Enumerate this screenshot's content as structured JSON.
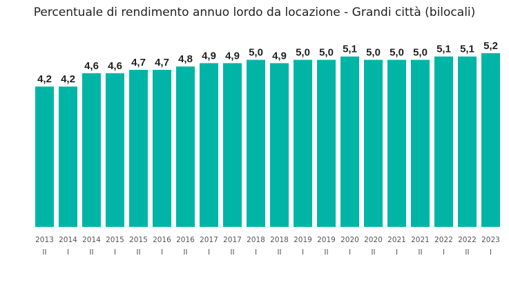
{
  "chart_data": {
    "type": "bar",
    "title": "Percentuale di rendimento annuo lordo da locazione - Grandi città (bilocali)",
    "categories": [
      [
        "2013",
        "II"
      ],
      [
        "2014",
        "I"
      ],
      [
        "2014",
        "II"
      ],
      [
        "2015",
        "I"
      ],
      [
        "2015",
        "II"
      ],
      [
        "2016",
        "I"
      ],
      [
        "2016",
        "II"
      ],
      [
        "2017",
        "I"
      ],
      [
        "2017",
        "II"
      ],
      [
        "2018",
        "I"
      ],
      [
        "2018",
        "II"
      ],
      [
        "2019",
        "I"
      ],
      [
        "2019",
        "II"
      ],
      [
        "2020",
        "I"
      ],
      [
        "2020",
        "II"
      ],
      [
        "2021",
        "I"
      ],
      [
        "2021",
        "II"
      ],
      [
        "2022",
        "I"
      ],
      [
        "2022",
        "II"
      ],
      [
        "2023",
        "I"
      ]
    ],
    "values": [
      4.2,
      4.2,
      4.6,
      4.6,
      4.7,
      4.7,
      4.8,
      4.9,
      4.9,
      5.0,
      4.9,
      5.0,
      5.0,
      5.1,
      5.0,
      5.0,
      5.0,
      5.1,
      5.1,
      5.2
    ],
    "data_labels": [
      "4,2",
      "4,2",
      "4,6",
      "4,6",
      "4,7",
      "4,7",
      "4,8",
      "4,9",
      "4,9",
      "5,0",
      "4,9",
      "5,0",
      "5,0",
      "5,1",
      "5,0",
      "5,0",
      "5,0",
      "5,1",
      "5,1",
      "5,2"
    ],
    "ylim": [
      0,
      5.2
    ],
    "grid": false,
    "color": "#00b5a5"
  }
}
